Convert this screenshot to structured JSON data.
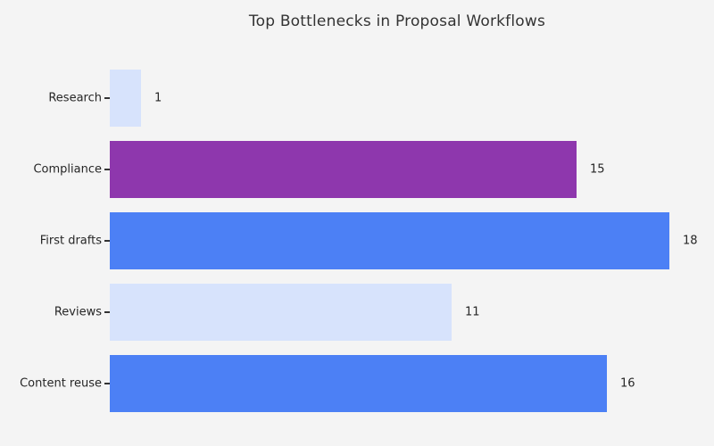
{
  "title": "Top Bottlenecks in Proposal Workflows",
  "chart_data": {
    "type": "bar",
    "orientation": "horizontal",
    "title": "Top Bottlenecks in Proposal Workflows",
    "categories": [
      "Research",
      "Compliance",
      "First drafts",
      "Reviews",
      "Content reuse"
    ],
    "values": [
      1,
      15,
      18,
      11,
      16
    ],
    "value_labels": [
      "1",
      "15",
      "18",
      "11",
      "16"
    ],
    "bar_colors": [
      "#d7e3fc",
      "#8e37ad",
      "#4c80f5",
      "#d7e3fc",
      "#4c80f5"
    ],
    "xlabel": "",
    "ylabel": "",
    "xlim": [
      0,
      18.5
    ],
    "grid": false,
    "legend": "none",
    "axis_lines": "none",
    "value_label_position": "outside-right"
  },
  "style": {
    "background_color": "#f4f4f4",
    "text_color": "#262626",
    "title_color": "#333333",
    "tick_color": "#333333"
  }
}
